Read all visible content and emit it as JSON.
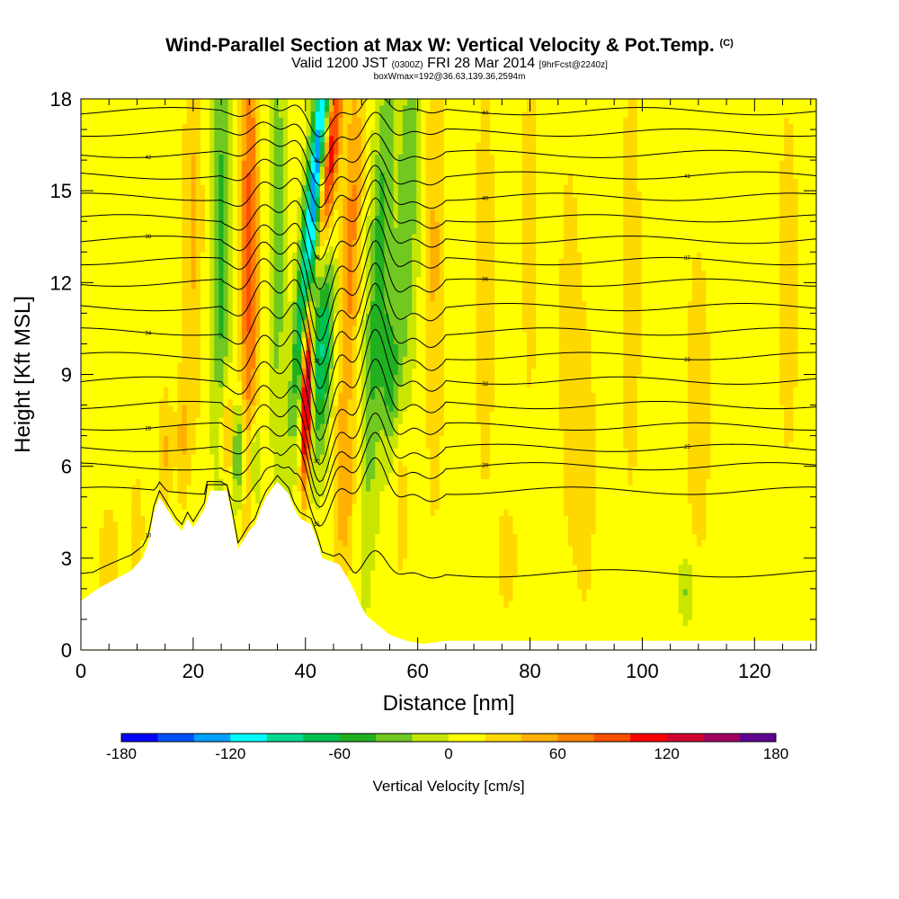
{
  "chart_data": {
    "type": "heatmap",
    "title": "Wind-Parallel Section at Max W: Vertical Velocity & Pot.Temp.",
    "title_mark": "(C)",
    "subtitle_parts": [
      "Valid 1200 JST",
      "(0300Z)",
      "FRI 28 Mar 2014",
      "[9hrFcst@2240z]"
    ],
    "subtitle2": "boxWmax=192@36.63,139.36,2594m",
    "xlabel": "Distance [nm]",
    "ylabel": "Height [Kft MSL]",
    "xlim": [
      0,
      131
    ],
    "ylim": [
      0,
      18
    ],
    "x_ticks": [
      0,
      20,
      40,
      60,
      80,
      100,
      120
    ],
    "x_tick_labels": [
      "0",
      "20",
      "40",
      "60",
      "80",
      "100",
      "120"
    ],
    "y_ticks": [
      0,
      3,
      6,
      9,
      12,
      15,
      18
    ],
    "y_tick_labels": [
      "0",
      "3",
      "6",
      "9",
      "12",
      "15",
      "18"
    ],
    "colorbar": {
      "title": "Vertical Velocity [cm/s]",
      "min": -180,
      "max": 180,
      "step": 20,
      "tick_values": [
        -180,
        -120,
        -60,
        0,
        60,
        120,
        180
      ],
      "tick_labels": [
        "-180",
        "-120",
        "-60",
        "0",
        "60",
        "120",
        "180"
      ],
      "colors": [
        "#0000ff",
        "#0050ff",
        "#00a0ff",
        "#00ffff",
        "#00d890",
        "#00c050",
        "#20b020",
        "#70c820",
        "#c8e600",
        "#ffff00",
        "#ffd800",
        "#ffb000",
        "#ff8000",
        "#ff5000",
        "#ff0000",
        "#d00030",
        "#a00060",
        "#600090"
      ]
    },
    "terrain_kft": [
      [
        0,
        1.6
      ],
      [
        3,
        2.0
      ],
      [
        6,
        2.3
      ],
      [
        9,
        2.6
      ],
      [
        11,
        3.0
      ],
      [
        12,
        3.5
      ],
      [
        13,
        4.5
      ],
      [
        14,
        5.0
      ],
      [
        15,
        4.7
      ],
      [
        16,
        4.4
      ],
      [
        17,
        4.1
      ],
      [
        18,
        3.9
      ],
      [
        19,
        4.3
      ],
      [
        20,
        4.0
      ],
      [
        21,
        4.3
      ],
      [
        22,
        4.6
      ],
      [
        22.5,
        5.2
      ],
      [
        26,
        5.2
      ],
      [
        27,
        4.3
      ],
      [
        28,
        3.3
      ],
      [
        29,
        3.6
      ],
      [
        30,
        3.9
      ],
      [
        31,
        4.1
      ],
      [
        32,
        4.6
      ],
      [
        33,
        5.0
      ],
      [
        35,
        5.5
      ],
      [
        37,
        5.1
      ],
      [
        38,
        4.6
      ],
      [
        39,
        4.3
      ],
      [
        41,
        4.1
      ],
      [
        42,
        3.6
      ],
      [
        43,
        3.0
      ],
      [
        46,
        2.8
      ],
      [
        47,
        2.5
      ],
      [
        48,
        2.2
      ],
      [
        49,
        1.8
      ],
      [
        50,
        1.4
      ],
      [
        51,
        1.1
      ],
      [
        53,
        0.8
      ],
      [
        55,
        0.5
      ],
      [
        58,
        0.3
      ],
      [
        61,
        0.2
      ],
      [
        65,
        0.3
      ],
      [
        131,
        0.3
      ]
    ],
    "w_features": [
      {
        "x": 42,
        "y": 15.5,
        "sx": 1.1,
        "sy": 4.5,
        "tilt": 0.5,
        "w": -180
      },
      {
        "x": 44,
        "y": 16,
        "sx": 1.2,
        "sy": 2.5,
        "tilt": 0.5,
        "w": 140
      },
      {
        "x": 40.2,
        "y": 8.5,
        "sx": 0.6,
        "sy": 2.2,
        "tilt": 0.1,
        "w": 175
      },
      {
        "x": 43,
        "y": 10,
        "sx": 1.3,
        "sy": 2.5,
        "tilt": 0.2,
        "w": -90
      },
      {
        "x": 48,
        "y": 13,
        "sx": 1.2,
        "sy": 4.5,
        "tilt": 0.2,
        "w": 60
      },
      {
        "x": 53,
        "y": 12,
        "sx": 1.3,
        "sy": 5.5,
        "tilt": 0.25,
        "w": -60
      },
      {
        "x": 58,
        "y": 14,
        "sx": 1.5,
        "sy": 5.0,
        "tilt": 0.2,
        "w": -45
      },
      {
        "x": 55,
        "y": 9,
        "sx": 1.0,
        "sy": 1.5,
        "tilt": 0.0,
        "w": -50
      },
      {
        "x": 30,
        "y": 13,
        "sx": 1.2,
        "sy": 6.0,
        "tilt": 0.0,
        "w": 80
      },
      {
        "x": 25,
        "y": 13,
        "sx": 1.1,
        "sy": 6.0,
        "tilt": 0.0,
        "w": -55
      },
      {
        "x": 35,
        "y": 14,
        "sx": 0.9,
        "sy": 5.0,
        "tilt": 0.0,
        "w": -45
      },
      {
        "x": 20,
        "y": 14,
        "sx": 1.2,
        "sy": 5.0,
        "tilt": 0.0,
        "w": 35
      },
      {
        "x": 28,
        "y": 6.5,
        "sx": 0.8,
        "sy": 1.2,
        "tilt": 0.0,
        "w": -70
      },
      {
        "x": 31,
        "y": 6.2,
        "sx": 0.8,
        "sy": 1.2,
        "tilt": 0.0,
        "w": -55
      },
      {
        "x": 26,
        "y": 7,
        "sx": 1.0,
        "sy": 1.3,
        "tilt": 0.0,
        "w": 55
      },
      {
        "x": 15,
        "y": 6.5,
        "sx": 0.8,
        "sy": 1.5,
        "tilt": 0.0,
        "w": 35
      },
      {
        "x": 18,
        "y": 7,
        "sx": 0.8,
        "sy": 1.5,
        "tilt": 0.0,
        "w": 35
      },
      {
        "x": 47,
        "y": 5,
        "sx": 1.2,
        "sy": 1.8,
        "tilt": 0.0,
        "w": 40
      },
      {
        "x": 57,
        "y": 5,
        "sx": 1.0,
        "sy": 2.0,
        "tilt": 0.0,
        "w": 30
      },
      {
        "x": 63,
        "y": 13,
        "sx": 1.2,
        "sy": 6.0,
        "tilt": 0.0,
        "w": 35
      },
      {
        "x": 72,
        "y": 12,
        "sx": 1.5,
        "sy": 6.0,
        "tilt": 0.0,
        "w": 22
      },
      {
        "x": 80,
        "y": 14,
        "sx": 1.2,
        "sy": 5.0,
        "tilt": 0.0,
        "w": 22
      },
      {
        "x": 87,
        "y": 10,
        "sx": 1.5,
        "sy": 5.0,
        "tilt": 0.0,
        "w": 22
      },
      {
        "x": 90,
        "y": 6,
        "sx": 1.5,
        "sy": 4.0,
        "tilt": 0.0,
        "w": 20
      },
      {
        "x": 98,
        "y": 12,
        "sx": 1.5,
        "sy": 6.0,
        "tilt": 0.0,
        "w": 22
      },
      {
        "x": 110,
        "y": 8,
        "sx": 2.0,
        "sy": 5.0,
        "tilt": 0.0,
        "w": 20
      },
      {
        "x": 126,
        "y": 12,
        "sx": 1.5,
        "sy": 5.0,
        "tilt": 0.0,
        "w": 22
      },
      {
        "x": 108,
        "y": 2,
        "sx": 1.0,
        "sy": 0.8,
        "tilt": 0.0,
        "w": -35
      },
      {
        "x": 76,
        "y": 3,
        "sx": 1.5,
        "sy": 1.5,
        "tilt": 0.0,
        "w": 20
      },
      {
        "x": 5,
        "y": 3,
        "sx": 1.5,
        "sy": 1.5,
        "tilt": 0.0,
        "w": 22
      },
      {
        "x": 10,
        "y": 4,
        "sx": 1.0,
        "sy": 1.5,
        "tilt": 0.0,
        "w": 22
      }
    ],
    "theta_contours": {
      "base_kft": [
        2.5,
        5.2,
        6.0,
        6.6,
        7.3,
        8.0,
        8.8,
        9.6,
        10.4,
        11.2,
        12.0,
        12.7,
        13.4,
        14.1,
        14.8,
        15.5,
        16.2,
        16.9,
        17.6
      ],
      "labels": [
        "10",
        "15",
        "20",
        "25",
        "28",
        "30",
        "32",
        "33",
        "34",
        "35",
        "36",
        "37",
        "38",
        "39",
        "40",
        "41",
        "42",
        "43",
        "44"
      ]
    }
  }
}
